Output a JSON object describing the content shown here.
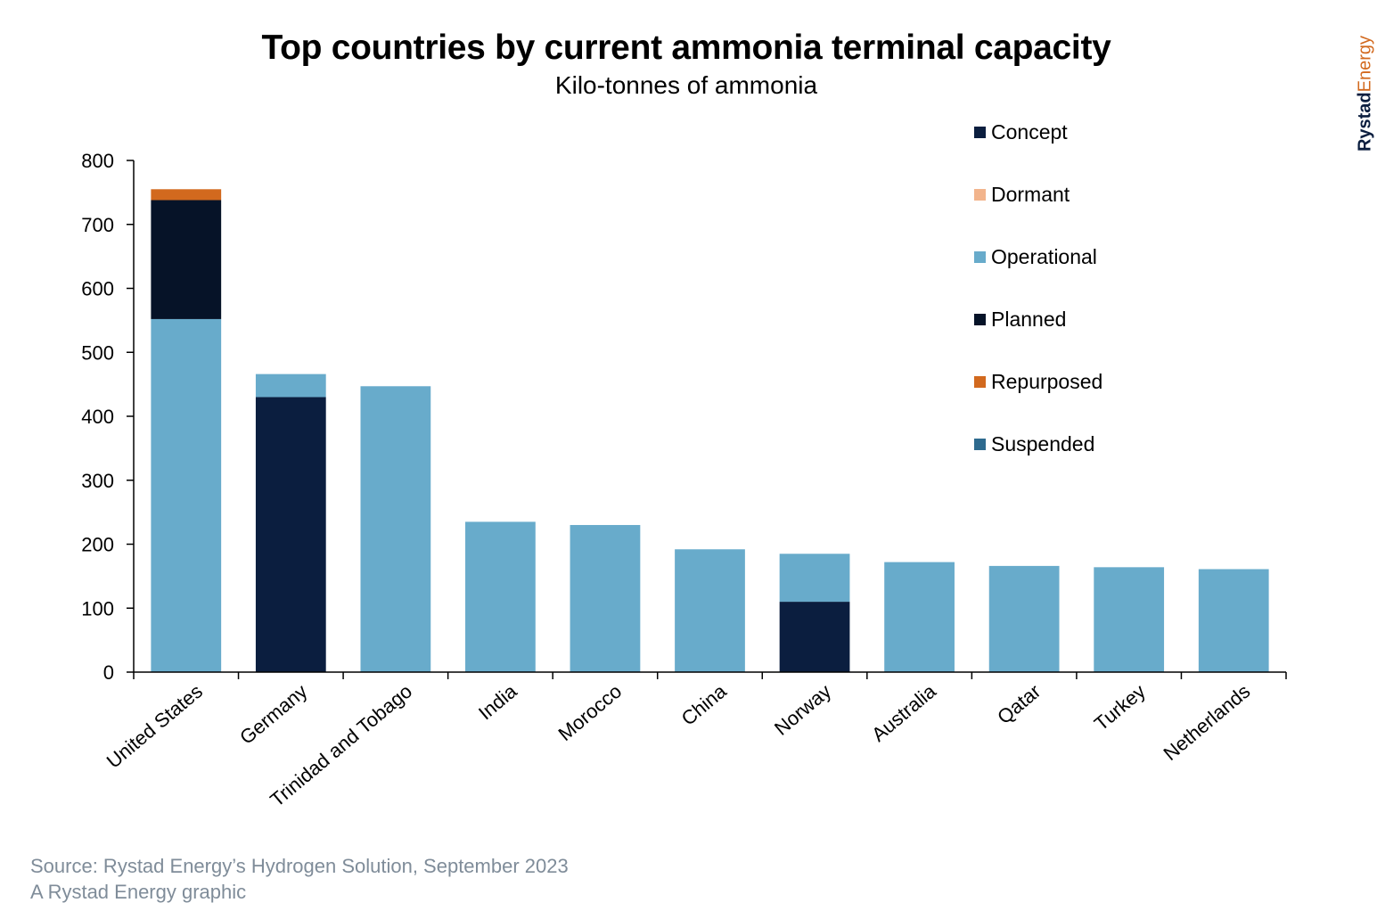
{
  "title": "Top countries by current ammonia terminal capacity",
  "subtitle": "Kilo-tonnes of ammonia",
  "brand": {
    "part1": "Rystad",
    "part2": "Energy"
  },
  "source_line1": "Source: Rystad Energy’s Hydrogen Solution, September 2023",
  "source_line2": "A Rystad Energy graphic",
  "chart_data": {
    "type": "bar",
    "stacked": true,
    "categories": [
      "United States",
      "Germany",
      "Trinidad and Tobago",
      "India",
      "Morocco",
      "China",
      "Norway",
      "Australia",
      "Qatar",
      "Turkey",
      "Netherlands"
    ],
    "series": [
      {
        "name": "Concept",
        "color": "#0b1e3f",
        "values": [
          0,
          430,
          0,
          0,
          0,
          0,
          110,
          0,
          0,
          0,
          0
        ]
      },
      {
        "name": "Dormant",
        "color": "#f2b48c",
        "values": [
          0,
          0,
          0,
          0,
          0,
          0,
          0,
          0,
          0,
          0,
          0
        ]
      },
      {
        "name": "Operational",
        "color": "#68abcb",
        "values": [
          552,
          36,
          447,
          235,
          230,
          192,
          75,
          172,
          166,
          164,
          161
        ]
      },
      {
        "name": "Planned",
        "color": "#061328",
        "values": [
          186,
          0,
          0,
          0,
          0,
          0,
          0,
          0,
          0,
          0,
          0
        ]
      },
      {
        "name": "Repurposed",
        "color": "#d2691e",
        "values": [
          17,
          0,
          0,
          0,
          0,
          0,
          0,
          0,
          0,
          0,
          0
        ]
      },
      {
        "name": "Suspended",
        "color": "#2e6a8e",
        "values": [
          0,
          0,
          0,
          0,
          0,
          0,
          0,
          0,
          0,
          0,
          0
        ]
      }
    ],
    "ylim": [
      0,
      800
    ],
    "yticks": [
      0,
      100,
      200,
      300,
      400,
      500,
      600,
      700,
      800
    ],
    "xlabel": "",
    "ylabel": "",
    "legend_position": "top-right",
    "grid": false
  }
}
